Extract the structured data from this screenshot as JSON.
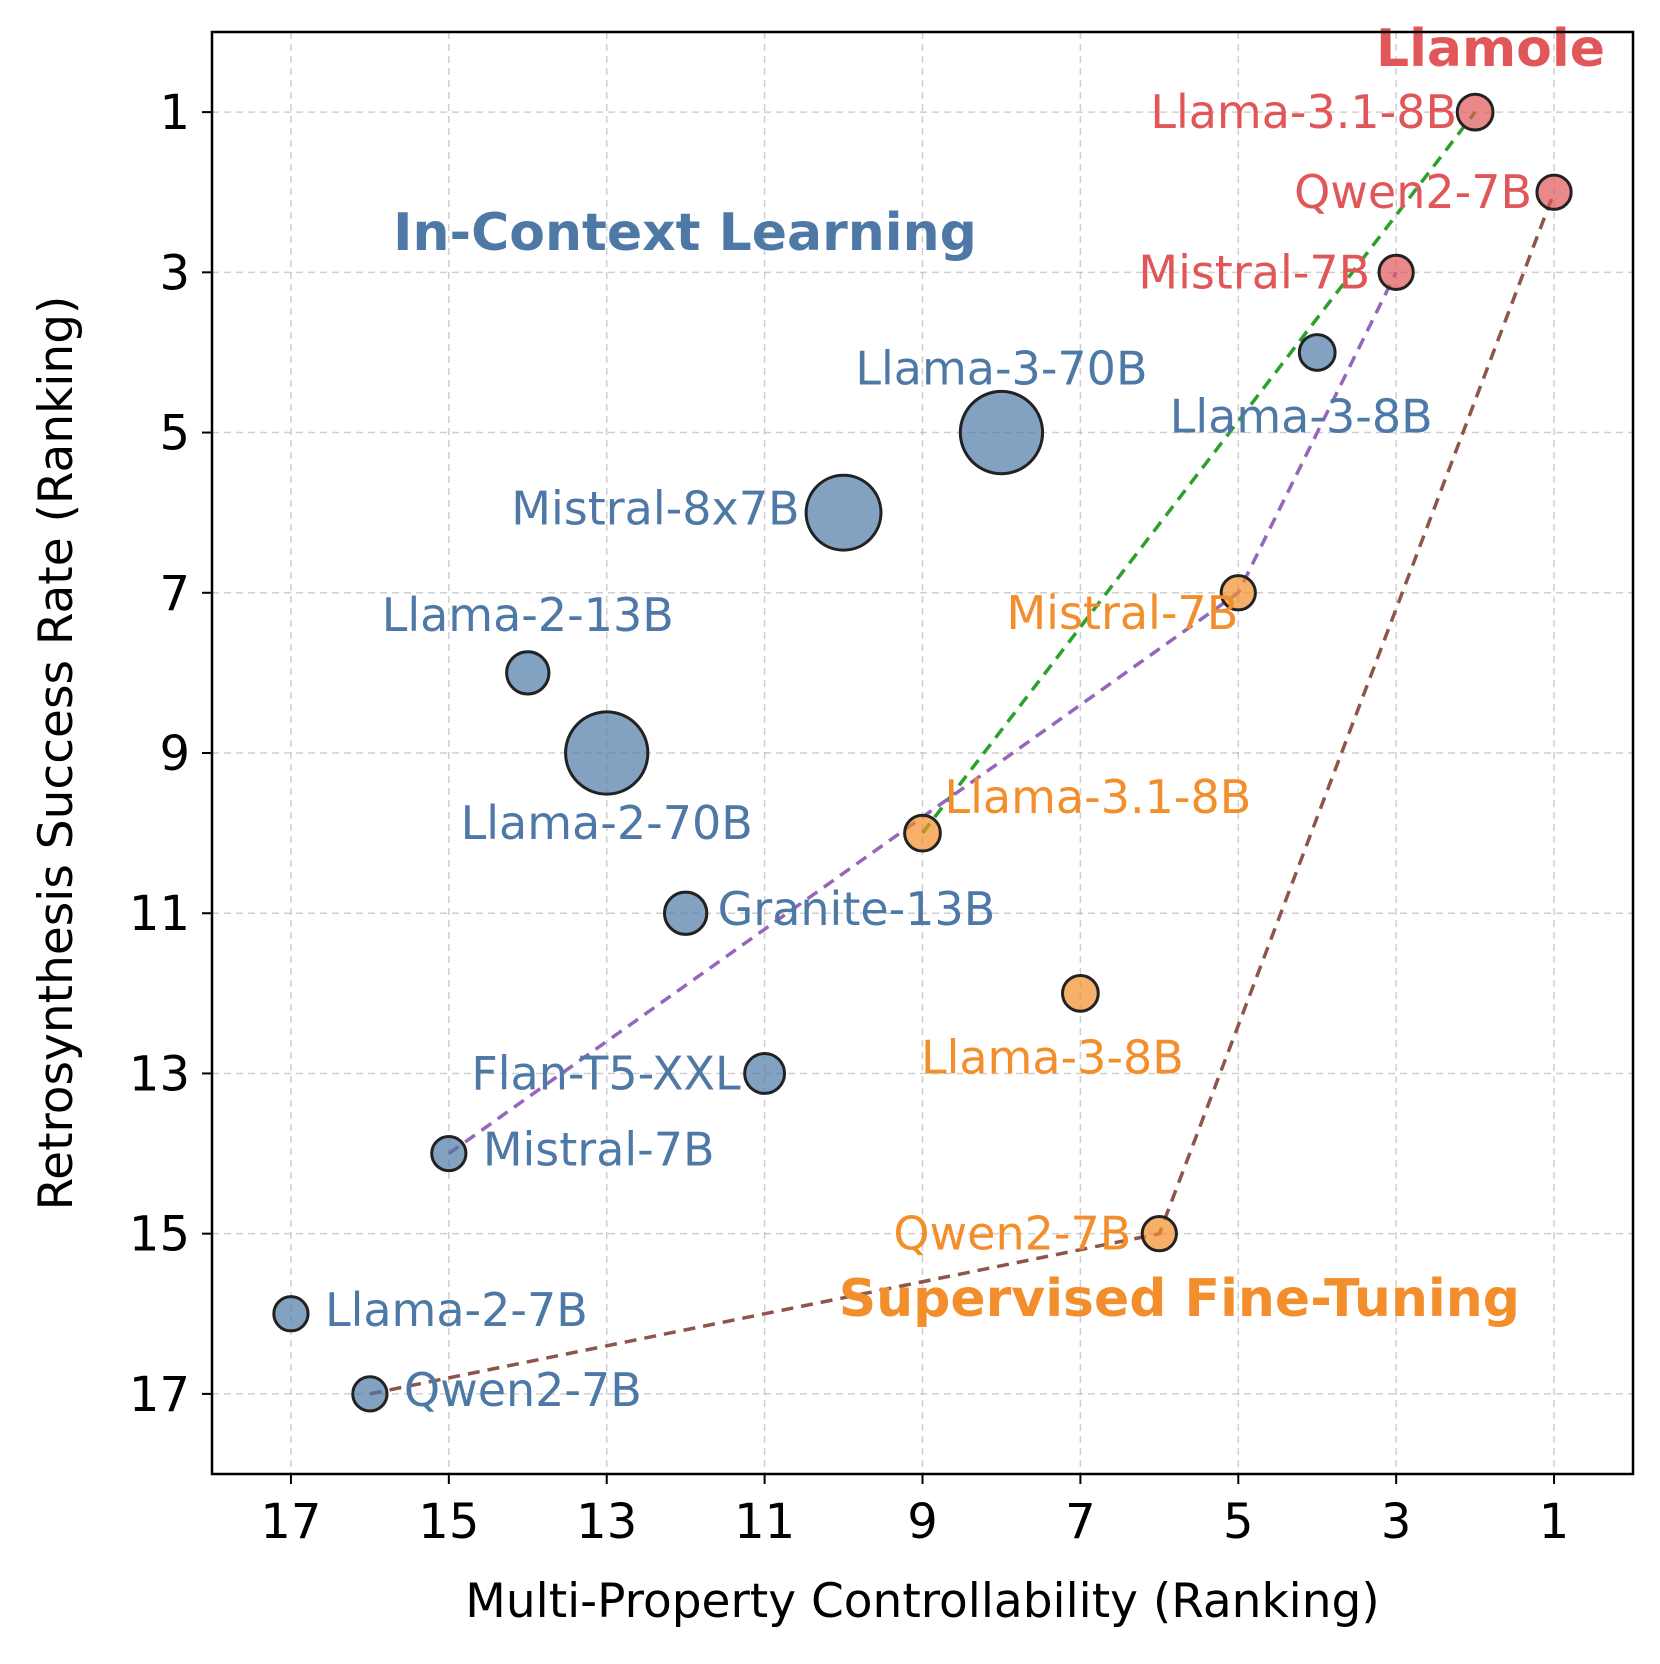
{
  "chart_data": {
    "type": "scatter",
    "xlabel": "Multi-Property Controllability (Ranking)",
    "ylabel": "Retrosynthesis Success Rate (Ranking)",
    "xlim": [
      18,
      0
    ],
    "ylim": [
      18,
      0
    ],
    "x_inverted": true,
    "y_inverted": true,
    "xticks": [
      17,
      15,
      13,
      11,
      9,
      7,
      5,
      3,
      1
    ],
    "yticks": [
      1,
      3,
      5,
      7,
      9,
      11,
      13,
      15,
      17
    ],
    "grid": true,
    "colors": {
      "in_context": "#4e79a7",
      "fine_tuning": "#f28e2b",
      "llamole": "#e15759",
      "trend_green": "#2ca02c",
      "trend_purple": "#9467bd",
      "trend_brown": "#8c564b"
    },
    "group_labels": [
      {
        "text": "In-Context Learning",
        "group": "in_context"
      },
      {
        "text": "Supervised Fine-Tuning",
        "group": "fine_tuning"
      },
      {
        "text": "Llamole",
        "group": "llamole"
      }
    ],
    "series": [
      {
        "name": "In-Context Learning",
        "group": "in_context",
        "points": [
          {
            "label": "Llama-3-70B",
            "x": 8,
            "y": 5,
            "size": 70
          },
          {
            "label": "Mistral-8x7B",
            "x": 10,
            "y": 6,
            "size": 56
          },
          {
            "label": "Llama-2-70B",
            "x": 13,
            "y": 9,
            "size": 70
          },
          {
            "label": "Llama-2-13B",
            "x": 14,
            "y": 8,
            "size": 13
          },
          {
            "label": "Llama-3-8B",
            "x": 4,
            "y": 4,
            "size": 8
          },
          {
            "label": "Granite-13B",
            "x": 12,
            "y": 11,
            "size": 13
          },
          {
            "label": "Flan-T5-XXL",
            "x": 11,
            "y": 13,
            "size": 11
          },
          {
            "label": "Mistral-7B",
            "x": 15,
            "y": 14,
            "size": 7
          },
          {
            "label": "Llama-2-7B",
            "x": 17,
            "y": 16,
            "size": 7
          },
          {
            "label": "Qwen2-7B",
            "x": 16,
            "y": 17,
            "size": 7
          }
        ]
      },
      {
        "name": "Supervised Fine-Tuning",
        "group": "fine_tuning",
        "points": [
          {
            "label": "Mistral-7B",
            "x": 5,
            "y": 7,
            "size": 7
          },
          {
            "label": "Llama-3.1-8B",
            "x": 9,
            "y": 10,
            "size": 8
          },
          {
            "label": "Llama-3-8B",
            "x": 7,
            "y": 12,
            "size": 8
          },
          {
            "label": "Qwen2-7B",
            "x": 6,
            "y": 15,
            "size": 7
          }
        ]
      },
      {
        "name": "Llamole",
        "group": "llamole",
        "points": [
          {
            "label": "Llama-3.1-8B",
            "x": 2,
            "y": 1,
            "size": 8
          },
          {
            "label": "Qwen2-7B",
            "x": 1,
            "y": 2,
            "size": 7
          },
          {
            "label": "Mistral-7B",
            "x": 3,
            "y": 3,
            "size": 7
          }
        ]
      }
    ],
    "trend_lines": [
      {
        "name": "Llama-3.1-8B",
        "color_key": "trend_green",
        "points": [
          [
            9,
            10
          ],
          [
            2,
            1
          ]
        ]
      },
      {
        "name": "Mistral-7B",
        "color_key": "trend_purple",
        "points": [
          [
            15,
            14
          ],
          [
            5,
            7
          ],
          [
            3,
            3
          ]
        ]
      },
      {
        "name": "Qwen2-7B",
        "color_key": "trend_brown",
        "points": [
          [
            16,
            17
          ],
          [
            6,
            15
          ],
          [
            1,
            2
          ]
        ]
      }
    ]
  }
}
